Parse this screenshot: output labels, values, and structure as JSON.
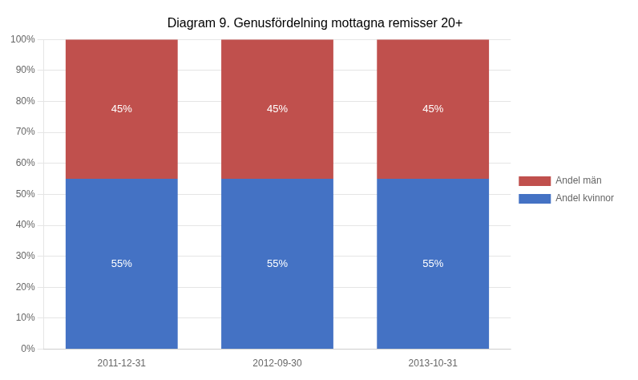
{
  "chart_data": {
    "type": "bar",
    "title": "Diagram 9. Genusfördelning mottagna remisser 20+",
    "categories": [
      "2011-12-31",
      "2012-09-30",
      "2013-10-31"
    ],
    "series": [
      {
        "name": "Andel kvinnor",
        "color": "#4472C4",
        "values": [
          55,
          55,
          55
        ],
        "value_labels": [
          "55%",
          "55%",
          "55%"
        ]
      },
      {
        "name": "Andel män",
        "color": "#C0504D",
        "values": [
          45,
          45,
          45
        ],
        "value_labels": [
          "45%",
          "45%",
          "45%"
        ]
      }
    ],
    "stacked": true,
    "data_labels": true,
    "ylim": [
      0,
      100
    ],
    "yticks": [
      {
        "value": 0,
        "label": "0%"
      },
      {
        "value": 10,
        "label": "10%"
      },
      {
        "value": 20,
        "label": "20%"
      },
      {
        "value": 30,
        "label": "30%"
      },
      {
        "value": 40,
        "label": "40%"
      },
      {
        "value": 50,
        "label": "50%"
      },
      {
        "value": 60,
        "label": "60%"
      },
      {
        "value": 70,
        "label": "70%"
      },
      {
        "value": 80,
        "label": "80%"
      },
      {
        "value": 90,
        "label": "90%"
      },
      {
        "value": 100,
        "label": "100%"
      }
    ],
    "grid": true,
    "legend": "right"
  }
}
